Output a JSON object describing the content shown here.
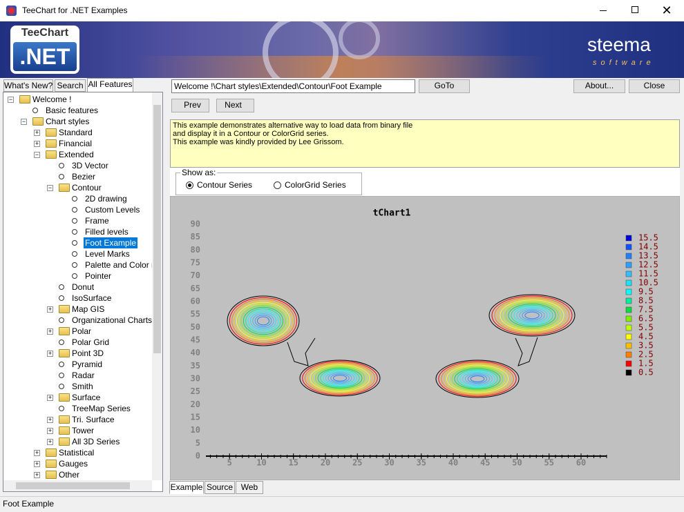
{
  "window": {
    "title": "TeeChart for .NET Examples"
  },
  "banner": {
    "logo_top": "TeeChart",
    "logo_bottom": ".NET",
    "brand": "steema",
    "brand_sub": "software"
  },
  "tabs": [
    {
      "label": "What's New?",
      "selected": false
    },
    {
      "label": "Search",
      "selected": false
    },
    {
      "label": "All Features",
      "selected": true
    }
  ],
  "tree": [
    {
      "label": "Welcome !",
      "folder": true,
      "children": [
        {
          "label": "Basic features"
        },
        {
          "label": "Chart styles",
          "folder": true,
          "children": [
            {
              "label": "Standard",
              "folder": true
            },
            {
              "label": "Financial",
              "folder": true
            },
            {
              "label": "Extended",
              "folder": true,
              "children": [
                {
                  "label": "3D Vector"
                },
                {
                  "label": "Bezier"
                },
                {
                  "label": "Contour",
                  "folder": true,
                  "children": [
                    {
                      "label": "2D drawing"
                    },
                    {
                      "label": "Custom Levels"
                    },
                    {
                      "label": "Frame"
                    },
                    {
                      "label": "Filled levels"
                    },
                    {
                      "label": "Foot Example",
                      "selected": true
                    },
                    {
                      "label": "Level Marks"
                    },
                    {
                      "label": "Palette and Color range"
                    },
                    {
                      "label": "Pointer"
                    }
                  ]
                },
                {
                  "label": "Donut"
                },
                {
                  "label": "IsoSurface"
                },
                {
                  "label": "Map GIS",
                  "folder": true
                },
                {
                  "label": "Organizational Charts"
                },
                {
                  "label": "Polar",
                  "folder": true
                },
                {
                  "label": "Polar Grid"
                },
                {
                  "label": "Point 3D",
                  "folder": true
                },
                {
                  "label": "Pyramid"
                },
                {
                  "label": "Radar"
                },
                {
                  "label": "Smith"
                },
                {
                  "label": "Surface",
                  "folder": true
                },
                {
                  "label": "TreeMap Series"
                },
                {
                  "label": "Tri. Surface",
                  "folder": true
                },
                {
                  "label": "Tower",
                  "folder": true
                },
                {
                  "label": "All 3D Series",
                  "folder": true
                }
              ]
            },
            {
              "label": "Statistical",
              "folder": true
            },
            {
              "label": "Gauges",
              "folder": true
            },
            {
              "label": "Other",
              "folder": true
            }
          ]
        }
      ]
    }
  ],
  "toolbar": {
    "path": "Welcome !\\Chart styles\\Extended\\Contour\\Foot Example",
    "goto": "GoTo",
    "about": "About...",
    "close": "Close",
    "prev": "Prev",
    "next": "Next"
  },
  "description": [
    "This example demonstrates alternative way to load data from binary file",
    "and display it in a Contour or ColorGrid series.",
    "This example was kindly provided by Lee Grissom."
  ],
  "show_as": {
    "title": "Show as:",
    "options": [
      {
        "label": "Contour Series",
        "selected": true
      },
      {
        "label": "ColorGrid Series",
        "selected": false
      }
    ]
  },
  "chart": {
    "title": "tChart1",
    "ylim": [
      0,
      90
    ],
    "yticks": [
      0,
      5,
      10,
      15,
      20,
      25,
      30,
      35,
      40,
      45,
      50,
      55,
      60,
      65,
      70,
      75,
      80,
      85,
      90
    ],
    "xlim": [
      1.3,
      64
    ],
    "xticks": [
      5,
      10,
      15,
      20,
      25,
      30,
      35,
      40,
      45,
      50,
      55,
      60
    ],
    "legend": [
      {
        "value": 15.5,
        "color": "#0000e0"
      },
      {
        "value": 14.5,
        "color": "#1050ff"
      },
      {
        "value": 13.5,
        "color": "#2080ff"
      },
      {
        "value": 12.5,
        "color": "#30a0ff"
      },
      {
        "value": 11.5,
        "color": "#30c0ff"
      },
      {
        "value": 10.5,
        "color": "#20e0ff"
      },
      {
        "value": 9.5,
        "color": "#00ffff"
      },
      {
        "value": 8.5,
        "color": "#00f0a0"
      },
      {
        "value": 7.5,
        "color": "#00e040"
      },
      {
        "value": 6.5,
        "color": "#80f000"
      },
      {
        "value": 5.5,
        "color": "#c0ff00"
      },
      {
        "value": 4.5,
        "color": "#ffff00"
      },
      {
        "value": 3.5,
        "color": "#ffc000"
      },
      {
        "value": 2.5,
        "color": "#ff8000"
      },
      {
        "value": 1.5,
        "color": "#ff0000"
      },
      {
        "value": 0.5,
        "color": "#000000"
      }
    ]
  },
  "bottom_tabs": [
    {
      "label": "Example",
      "selected": true
    },
    {
      "label": "Source",
      "selected": false
    },
    {
      "label": "Web",
      "selected": false
    }
  ],
  "status": "Foot Example"
}
